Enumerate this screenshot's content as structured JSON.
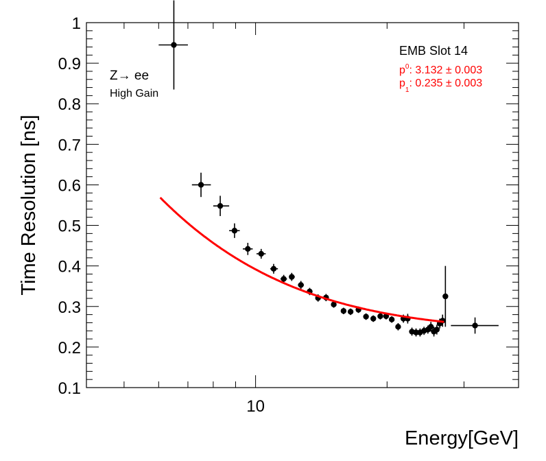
{
  "chart_data": {
    "type": "scatter",
    "xlabel": "Energy[GeV]",
    "ylabel": "Time Resolution [ns]",
    "xscale": "log",
    "xlim": [
      4.1,
      40
    ],
    "ylim": [
      0.1,
      1.0
    ],
    "yticks": [
      0.1,
      0.2,
      0.3,
      0.4,
      0.5,
      0.6,
      0.7,
      0.8,
      0.9,
      1.0
    ],
    "ytick_labels": [
      "0.1",
      "0.2",
      "0.3",
      "0.4",
      "0.5",
      "0.6",
      "0.7",
      "0.8",
      "0.9",
      "1"
    ],
    "xtick_labeled": [
      10
    ],
    "xtick_labels": [
      "10"
    ],
    "legend_title": "EMB Slot 14",
    "annotation_process": "Z→ ee",
    "annotation_gain": "High Gain",
    "fit_p0_label": "p",
    "fit_p0_sub": "0",
    "fit_p0_value": ": 3.132 ± 0.003",
    "fit_p1_label": "p",
    "fit_p1_sub": "1",
    "fit_p1_value": ": 0.235 ± 0.003",
    "fit_function": {
      "p0": 3.132,
      "p1": 0.235,
      "x_range": [
        6.05,
        27.0
      ],
      "color": "#ff0000"
    },
    "series": [
      {
        "name": "data",
        "color": "#000000",
        "points": [
          {
            "x": 6.5,
            "xlo": 6.0,
            "xhi": 7.0,
            "y": 0.945,
            "yerr": 0.11
          },
          {
            "x": 7.5,
            "xlo": 7.15,
            "xhi": 7.9,
            "y": 0.6,
            "yerr": 0.03
          },
          {
            "x": 8.3,
            "xlo": 8.0,
            "xhi": 8.7,
            "y": 0.548,
            "yerr": 0.025
          },
          {
            "x": 8.95,
            "xlo": 8.7,
            "xhi": 9.2,
            "y": 0.487,
            "yerr": 0.018
          },
          {
            "x": 9.6,
            "xlo": 9.35,
            "xhi": 9.85,
            "y": 0.442,
            "yerr": 0.015
          },
          {
            "x": 10.3,
            "xlo": 10.05,
            "xhi": 10.55,
            "y": 0.43,
            "yerr": 0.012
          },
          {
            "x": 11.0,
            "xlo": 10.8,
            "xhi": 11.25,
            "y": 0.393,
            "yerr": 0.012
          },
          {
            "x": 11.6,
            "xlo": 11.4,
            "xhi": 11.8,
            "y": 0.368,
            "yerr": 0.01
          },
          {
            "x": 12.1,
            "xlo": 11.95,
            "xhi": 12.3,
            "y": 0.373,
            "yerr": 0.01
          },
          {
            "x": 12.7,
            "xlo": 12.5,
            "xhi": 12.9,
            "y": 0.353,
            "yerr": 0.01
          },
          {
            "x": 13.3,
            "xlo": 13.1,
            "xhi": 13.5,
            "y": 0.337,
            "yerr": 0.009
          },
          {
            "x": 13.9,
            "xlo": 13.7,
            "xhi": 14.1,
            "y": 0.321,
            "yerr": 0.009
          },
          {
            "x": 14.5,
            "xlo": 14.3,
            "xhi": 14.7,
            "y": 0.322,
            "yerr": 0.009
          },
          {
            "x": 15.1,
            "xlo": 14.9,
            "xhi": 15.3,
            "y": 0.305,
            "yerr": 0.008
          },
          {
            "x": 15.9,
            "xlo": 15.7,
            "xhi": 16.1,
            "y": 0.289,
            "yerr": 0.008
          },
          {
            "x": 16.5,
            "xlo": 16.3,
            "xhi": 16.7,
            "y": 0.287,
            "yerr": 0.008
          },
          {
            "x": 17.2,
            "xlo": 17.0,
            "xhi": 17.4,
            "y": 0.292,
            "yerr": 0.008
          },
          {
            "x": 17.9,
            "xlo": 17.7,
            "xhi": 18.1,
            "y": 0.275,
            "yerr": 0.008
          },
          {
            "x": 18.6,
            "xlo": 18.4,
            "xhi": 18.8,
            "y": 0.27,
            "yerr": 0.008
          },
          {
            "x": 19.3,
            "xlo": 19.1,
            "xhi": 19.5,
            "y": 0.276,
            "yerr": 0.008
          },
          {
            "x": 19.9,
            "xlo": 19.7,
            "xhi": 20.1,
            "y": 0.276,
            "yerr": 0.008
          },
          {
            "x": 20.5,
            "xlo": 20.3,
            "xhi": 20.7,
            "y": 0.268,
            "yerr": 0.008
          },
          {
            "x": 21.2,
            "xlo": 21.0,
            "xhi": 21.4,
            "y": 0.25,
            "yerr": 0.009
          },
          {
            "x": 21.8,
            "xlo": 21.6,
            "xhi": 22.0,
            "y": 0.27,
            "yerr": 0.01
          },
          {
            "x": 22.3,
            "xlo": 22.1,
            "xhi": 22.5,
            "y": 0.27,
            "yerr": 0.012
          },
          {
            "x": 22.8,
            "xlo": 22.6,
            "xhi": 23.0,
            "y": 0.238,
            "yerr": 0.01
          },
          {
            "x": 23.3,
            "xlo": 23.1,
            "xhi": 23.5,
            "y": 0.236,
            "yerr": 0.01
          },
          {
            "x": 23.8,
            "xlo": 23.6,
            "xhi": 24.0,
            "y": 0.236,
            "yerr": 0.01
          },
          {
            "x": 24.3,
            "xlo": 24.1,
            "xhi": 24.5,
            "y": 0.24,
            "yerr": 0.01
          },
          {
            "x": 24.8,
            "xlo": 24.6,
            "xhi": 25.0,
            "y": 0.243,
            "yerr": 0.01
          },
          {
            "x": 25.2,
            "xlo": 25.0,
            "xhi": 25.4,
            "y": 0.25,
            "yerr": 0.012
          },
          {
            "x": 25.6,
            "xlo": 25.4,
            "xhi": 25.8,
            "y": 0.238,
            "yerr": 0.012
          },
          {
            "x": 26.0,
            "xlo": 25.8,
            "xhi": 26.2,
            "y": 0.243,
            "yerr": 0.012
          },
          {
            "x": 26.4,
            "xlo": 26.2,
            "xhi": 26.6,
            "y": 0.258,
            "yerr": 0.012
          },
          {
            "x": 26.8,
            "xlo": 26.6,
            "xhi": 27.0,
            "y": 0.265,
            "yerr": 0.015
          },
          {
            "x": 27.2,
            "xlo": 27.0,
            "xhi": 27.4,
            "y": 0.325,
            "yerr": 0.075
          },
          {
            "x": 31.8,
            "xlo": 28.0,
            "xhi": 36.0,
            "y": 0.253,
            "yerr": 0.02
          }
        ]
      }
    ]
  }
}
